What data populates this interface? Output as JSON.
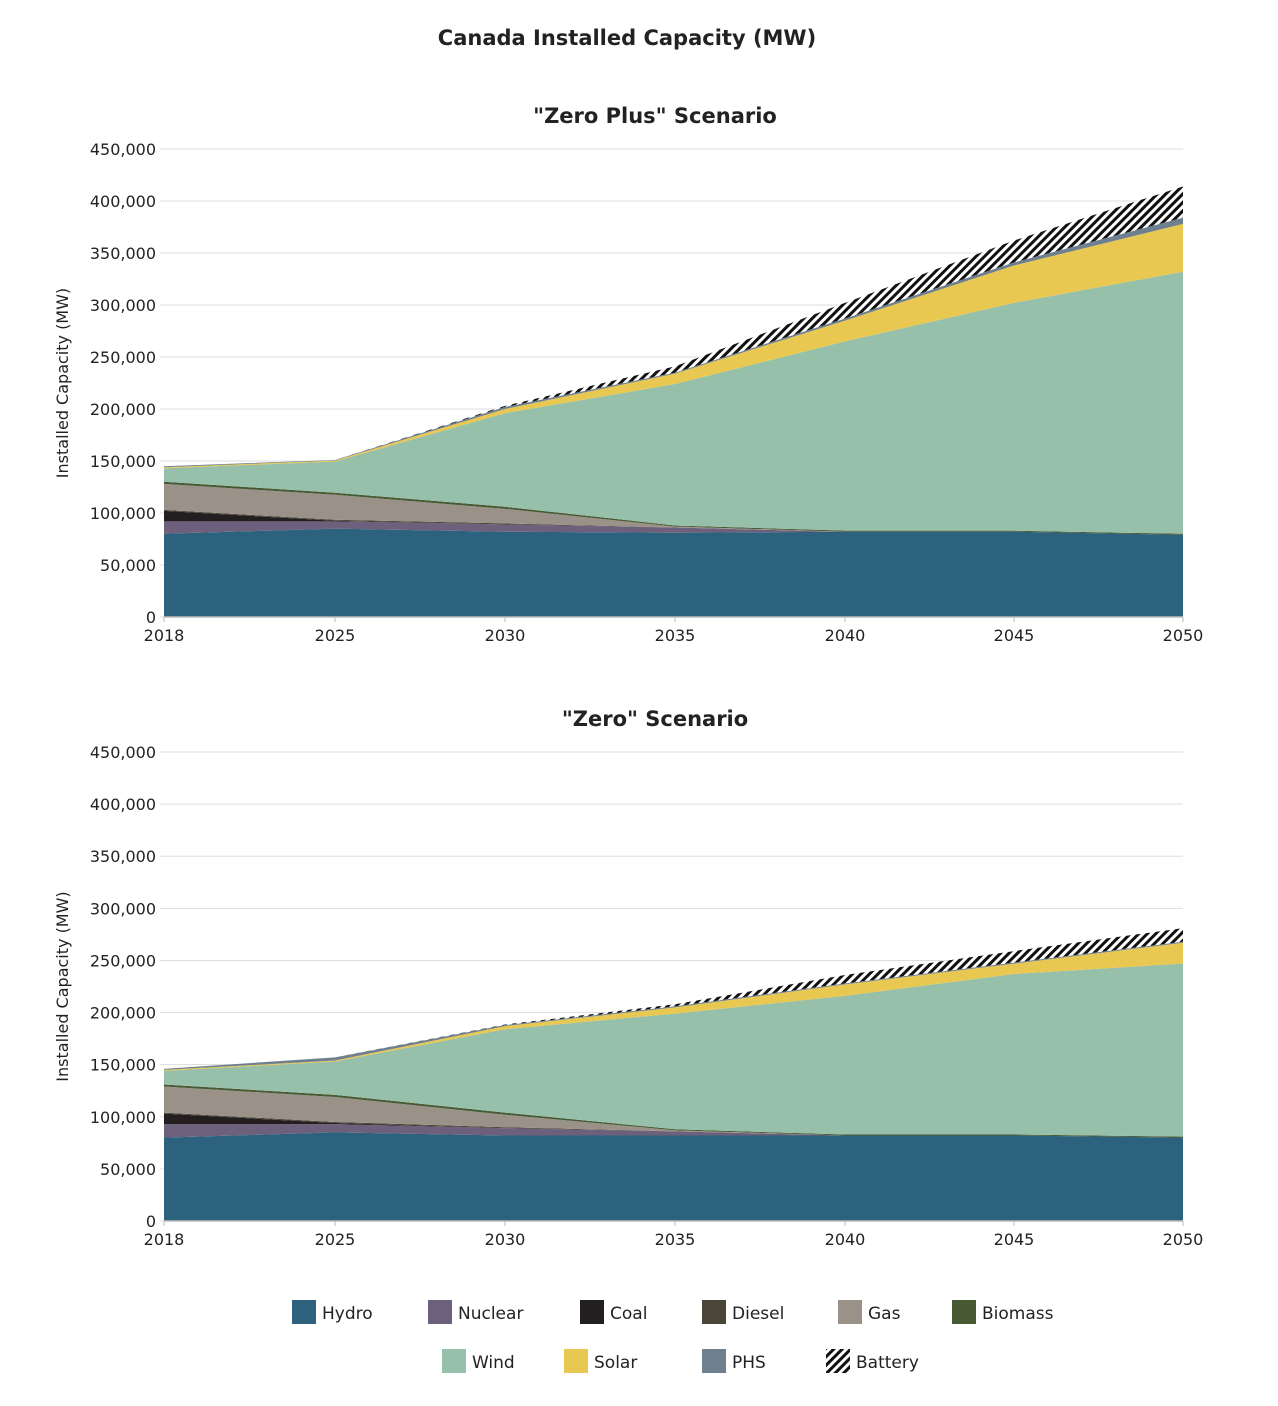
{
  "chart_data": {
    "type": "area",
    "title": "Canada Installed Capacity (MW)",
    "series_names": [
      "Hydro",
      "Nuclear",
      "Coal",
      "Diesel",
      "Gas",
      "Biomass",
      "Wind",
      "Solar",
      "PHS",
      "Battery"
    ],
    "colors": {
      "Hydro": "#2c627d",
      "Nuclear": "#6c607c",
      "Coal": "#231f20",
      "Diesel": "#4a4538",
      "Gas": "#9a9288",
      "Biomass": "#485a34",
      "Wind": "#96c0aa",
      "Solar": "#e8c850",
      "PHS": "#6e8090",
      "Battery": "hatch"
    },
    "legend_position": "bottom",
    "charts": [
      {
        "title": "\"Zero Plus\" Scenario",
        "xlabel": "",
        "ylabel": "Installed Capacity (MW)",
        "ylim": [
          0,
          450000
        ],
        "yticks": [
          "0",
          "50,000",
          "100,000",
          "150,000",
          "200,000",
          "250,000",
          "300,000",
          "350,000",
          "400,000",
          "450,000"
        ],
        "x": [
          2018,
          2025,
          2030,
          2035,
          2040,
          2045,
          2050
        ],
        "series": [
          {
            "name": "Hydro",
            "values": [
              80000,
              85000,
              82000,
              81000,
              82000,
              82000,
              79000
            ]
          },
          {
            "name": "Nuclear",
            "values": [
              12000,
              7000,
              7000,
              5000,
              0,
              0,
              0
            ]
          },
          {
            "name": "Coal",
            "values": [
              10000,
              500,
              0,
              0,
              0,
              0,
              0
            ]
          },
          {
            "name": "Diesel",
            "values": [
              1000,
              1000,
              1000,
              0,
              0,
              0,
              0
            ]
          },
          {
            "name": "Gas",
            "values": [
              25000,
              24000,
              14000,
              1000,
              0,
              0,
              0
            ]
          },
          {
            "name": "Biomass",
            "values": [
              2000,
              2000,
              2000,
              1000,
              1000,
              1000,
              1000
            ]
          },
          {
            "name": "Wind",
            "values": [
              13000,
              30000,
              90000,
              136000,
              182000,
              219000,
              252000
            ]
          },
          {
            "name": "Solar",
            "values": [
              1000,
              1000,
              4000,
              10000,
              20000,
              36000,
              46000
            ]
          },
          {
            "name": "PHS",
            "values": [
              1000,
              500,
              2000,
              1000,
              2000,
              3000,
              6000
            ]
          },
          {
            "name": "Battery",
            "values": [
              0,
              0,
              1000,
              6000,
              15000,
              21000,
              30000
            ]
          }
        ]
      },
      {
        "title": "\"Zero\" Scenario",
        "xlabel": "",
        "ylabel": "Installed Capacity (MW)",
        "ylim": [
          0,
          450000
        ],
        "yticks": [
          "0",
          "50,000",
          "100,000",
          "150,000",
          "200,000",
          "250,000",
          "300,000",
          "350,000",
          "400,000",
          "450,000"
        ],
        "x": [
          2018,
          2025,
          2030,
          2035,
          2040,
          2045,
          2050
        ],
        "series": [
          {
            "name": "Hydro",
            "values": [
              80000,
              85000,
              82000,
              82000,
              82000,
              82000,
              80000
            ]
          },
          {
            "name": "Nuclear",
            "values": [
              13000,
              8000,
              7000,
              4000,
              0,
              0,
              0
            ]
          },
          {
            "name": "Coal",
            "values": [
              10000,
              1000,
              0,
              0,
              0,
              0,
              0
            ]
          },
          {
            "name": "Diesel",
            "values": [
              1000,
              1000,
              1000,
              0,
              0,
              0,
              0
            ]
          },
          {
            "name": "Gas",
            "values": [
              25000,
              24000,
              12000,
              1000,
              0,
              0,
              0
            ]
          },
          {
            "name": "Biomass",
            "values": [
              2000,
              2000,
              2000,
              1000,
              1000,
              1000,
              1000
            ]
          },
          {
            "name": "Wind",
            "values": [
              13000,
              32000,
              80000,
              111000,
              133000,
              154000,
              166000
            ]
          },
          {
            "name": "Solar",
            "values": [
              1000,
              1000,
              3000,
              6000,
              11000,
              10000,
              20000
            ]
          },
          {
            "name": "PHS",
            "values": [
              1000,
              3000,
              1000,
              1000,
              1000,
              1000,
              1000
            ]
          },
          {
            "name": "Battery",
            "values": [
              0,
              0,
              500,
              2000,
              8000,
              11000,
              13000
            ]
          }
        ]
      }
    ]
  }
}
